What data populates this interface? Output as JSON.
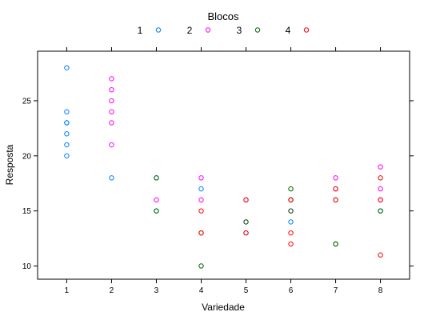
{
  "chart_data": {
    "type": "scatter",
    "title": "",
    "xlabel": "Variedade",
    "ylabel": "Resposta",
    "legend_title": "Blocos",
    "legend_position": "top",
    "grid": false,
    "xlim": [
      0.35,
      8.65
    ],
    "ylim": [
      8.8,
      29.5
    ],
    "x_ticks": [
      1,
      2,
      3,
      4,
      5,
      6,
      7,
      8
    ],
    "y_ticks": [
      10,
      15,
      20,
      25
    ],
    "series": [
      {
        "name": "1",
        "color": "#0080ff",
        "points": [
          [
            1,
            20
          ],
          [
            1,
            21
          ],
          [
            1,
            22
          ],
          [
            1,
            23
          ],
          [
            1,
            23
          ],
          [
            1,
            24
          ],
          [
            1,
            28
          ],
          [
            2,
            18
          ],
          [
            3,
            18
          ],
          [
            3,
            15
          ],
          [
            4,
            17
          ],
          [
            5,
            16
          ],
          [
            5,
            13
          ],
          [
            6,
            14
          ],
          [
            6,
            16
          ],
          [
            7,
            16
          ],
          [
            8,
            15
          ]
        ]
      },
      {
        "name": "2",
        "color": "#ff00ff",
        "points": [
          [
            2,
            21
          ],
          [
            2,
            23
          ],
          [
            2,
            24
          ],
          [
            2,
            25
          ],
          [
            2,
            26
          ],
          [
            2,
            27
          ],
          [
            3,
            16
          ],
          [
            4,
            16
          ],
          [
            4,
            18
          ],
          [
            5,
            14
          ],
          [
            6,
            15
          ],
          [
            7,
            17
          ],
          [
            7,
            18
          ],
          [
            8,
            16
          ],
          [
            8,
            17
          ],
          [
            8,
            19
          ]
        ]
      },
      {
        "name": "3",
        "color": "#006400",
        "points": [
          [
            3,
            15
          ],
          [
            3,
            18
          ],
          [
            4,
            10
          ],
          [
            4,
            13
          ],
          [
            5,
            14
          ],
          [
            6,
            15
          ],
          [
            6,
            16
          ],
          [
            6,
            17
          ],
          [
            7,
            12
          ],
          [
            7,
            12
          ],
          [
            8,
            15
          ]
        ]
      },
      {
        "name": "4",
        "color": "#ff0000",
        "points": [
          [
            4,
            13
          ],
          [
            4,
            15
          ],
          [
            5,
            13
          ],
          [
            5,
            16
          ],
          [
            6,
            12
          ],
          [
            6,
            13
          ],
          [
            6,
            16
          ],
          [
            7,
            16
          ],
          [
            7,
            17
          ],
          [
            8,
            11
          ],
          [
            8,
            16
          ],
          [
            8,
            18
          ]
        ]
      }
    ]
  }
}
